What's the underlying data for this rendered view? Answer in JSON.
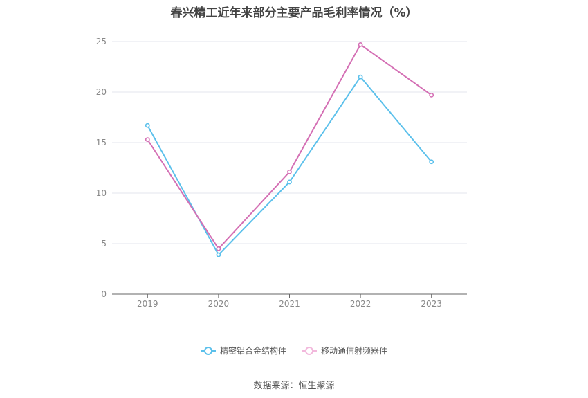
{
  "chart_data": {
    "type": "line",
    "title": "春兴精工近年来部分主要产品毛利率情况（%）",
    "categories": [
      "2019",
      "2020",
      "2021",
      "2022",
      "2023"
    ],
    "series": [
      {
        "name": "精密铝合金结构件",
        "color": "#5bc0eb",
        "values": [
          16.7,
          3.9,
          11.1,
          21.5,
          13.1
        ]
      },
      {
        "name": "移动通信射频器件",
        "color": "#d46fb4",
        "values": [
          15.3,
          4.5,
          12.1,
          24.7,
          19.7
        ]
      }
    ],
    "yticks": [
      "0",
      "5",
      "10",
      "15",
      "20",
      "25"
    ],
    "ylim": [
      0,
      25
    ],
    "grid": true,
    "legend": "bottom-center",
    "source": "数据来源：恒生聚源"
  }
}
